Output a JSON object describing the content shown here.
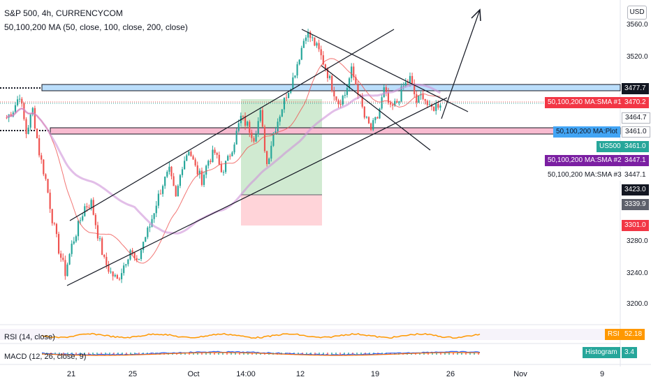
{
  "header": {
    "title": "S&P 500, 4h, CURRENCYCOM",
    "ma_legend": "50,100,200 MA (50, close, 100, close, 200, close)"
  },
  "scale": {
    "currency_button": "USD",
    "price_ticks": [
      "3560.0",
      "3520.0",
      "3280.0",
      "3240.0",
      "3200.0"
    ]
  },
  "price_badges": [
    {
      "id": "resistance",
      "text": "3477.7",
      "bg": "#131722",
      "fg": "#ffffff"
    },
    {
      "id": "sma1",
      "text": "3470.2",
      "bg": "#f23645",
      "fg": "#ffffff",
      "name": "50,100,200 MA:SMA #1"
    },
    {
      "id": "sma1b",
      "text": "3464.7",
      "bg": "#ffffff",
      "fg": "#131722"
    },
    {
      "id": "plot",
      "text": "3461.0",
      "bg": "#ffffff",
      "fg": "#131722",
      "name": "50,100,200 MA:Plot",
      "name_bg": "#42a5f5"
    },
    {
      "id": "last",
      "text": "3461.0",
      "bg": "#26a69a",
      "fg": "#ffffff",
      "name": "US500",
      "name_bg": "#26a69a"
    },
    {
      "id": "sma2",
      "text": "3447.1",
      "bg": "#7b1fa2",
      "fg": "#ffffff",
      "name": "50,100,200 MA:SMA #2"
    },
    {
      "id": "sma3",
      "text": "3447.1",
      "bg": "#ffffff",
      "fg": "#131722",
      "name": "50,100,200 MA:SMA #3"
    },
    {
      "id": "entry",
      "text": "3423.0",
      "bg": "#131722",
      "fg": "#ffffff"
    },
    {
      "id": "target",
      "text": "3339.9",
      "bg": "#5d606b",
      "fg": "#ffffff"
    },
    {
      "id": "stop",
      "text": "3301.0",
      "bg": "#f23645",
      "fg": "#ffffff"
    }
  ],
  "x_axis": [
    "21",
    "25",
    "Oct",
    "14:00",
    "12",
    "19",
    "26",
    "Nov",
    "9"
  ],
  "indicators": {
    "rsi_label": "RSI (14, close)",
    "rsi_badge_name": "RSI",
    "rsi_value": "52.18",
    "macd_label": "MACD (12, 26, close, 9)",
    "macd_badge_name": "Histogram",
    "macd_value": "3.4"
  },
  "colors": {
    "up": "#26a69a",
    "down": "#ef5350",
    "sma50": "#ef5350",
    "sma200": "#ce93d8",
    "resistance_zone": "#bbdefb",
    "support_zone": "#f8bbd0",
    "profit_zone": "#c8e6c9",
    "loss_zone": "#ffcdd2"
  },
  "chart_data": {
    "type": "candlestick",
    "symbol": "S&P 500",
    "interval": "4h",
    "ylim": [
      3180,
      3580
    ],
    "y_ticks": [
      3200,
      3240,
      3280,
      3520,
      3560
    ],
    "close_path": [
      3440,
      3450,
      3470,
      3420,
      3450,
      3395,
      3360,
      3310,
      3270,
      3240,
      3275,
      3300,
      3325,
      3330,
      3290,
      3255,
      3240,
      3230,
      3250,
      3270,
      3250,
      3280,
      3300,
      3330,
      3355,
      3370,
      3335,
      3380,
      3400,
      3375,
      3360,
      3385,
      3395,
      3370,
      3385,
      3410,
      3440,
      3430,
      3415,
      3445,
      3380,
      3420,
      3445,
      3470,
      3490,
      3520,
      3550,
      3540,
      3525,
      3505,
      3480,
      3460,
      3470,
      3500,
      3475,
      3440,
      3425,
      3440,
      3475,
      3450,
      3460,
      3480,
      3490,
      3460,
      3470,
      3450,
      3455,
      3462
    ]
  }
}
